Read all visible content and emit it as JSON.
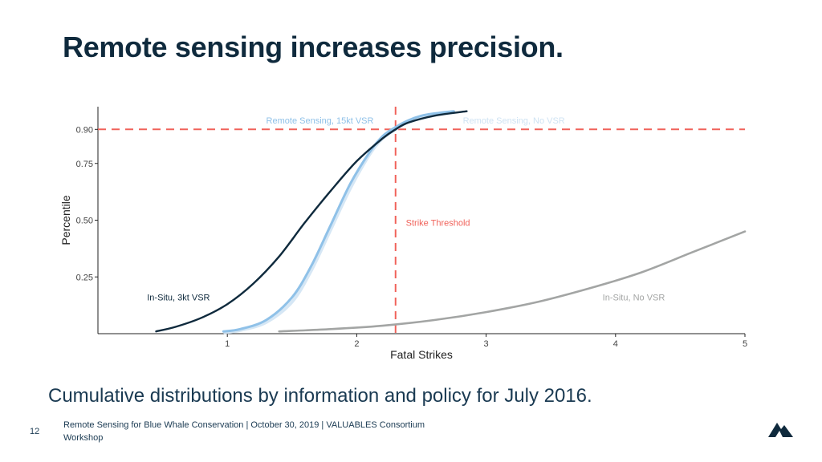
{
  "slide": {
    "title": "Remote sensing increases precision.",
    "caption": "Cumulative distributions by information and policy for July 2016.",
    "page_number": "12",
    "footer": "Remote Sensing for Blue Whale Conservation | October 30, 2019 | VALUABLES Consortium Workshop",
    "logo_icon": "mountain-logo-icon"
  },
  "colors": {
    "title": "#0f2a3d",
    "threshold": "#f0625a",
    "in_situ_3kt": "#0f2a3d",
    "remote_15kt": "#8fc1e8",
    "remote_no_vsr": "#cfe3f3",
    "in_situ_no_vsr": "#a3a5a4"
  },
  "chart_data": {
    "type": "line",
    "xlabel": "Fatal Strikes",
    "ylabel": "Percentile",
    "xlim": [
      0,
      5
    ],
    "ylim": [
      0,
      1
    ],
    "xticks": [
      1,
      2,
      3,
      4,
      5
    ],
    "yticks": [
      0.25,
      0.5,
      0.75,
      0.9
    ],
    "ytick_labels": [
      "0.25",
      "0.50",
      "0.75",
      "0.90"
    ],
    "grid": false,
    "legend": "none",
    "series": [
      {
        "name": "In-Situ, 3kt VSR",
        "color": "#0f2a3d",
        "x": [
          0.45,
          0.6,
          0.8,
          1.0,
          1.2,
          1.4,
          1.6,
          1.8,
          2.0,
          2.2,
          2.3,
          2.4,
          2.6,
          2.85
        ],
        "y": [
          0.01,
          0.03,
          0.07,
          0.13,
          0.22,
          0.34,
          0.49,
          0.63,
          0.76,
          0.86,
          0.9,
          0.93,
          0.96,
          0.98
        ]
      },
      {
        "name": "Remote Sensing, 15kt VSR",
        "color": "#8fc1e8",
        "x": [
          0.97,
          1.1,
          1.3,
          1.5,
          1.65,
          1.8,
          1.95,
          2.1,
          2.2,
          2.3,
          2.4,
          2.5,
          2.6,
          2.75
        ],
        "y": [
          0.01,
          0.02,
          0.06,
          0.16,
          0.3,
          0.48,
          0.66,
          0.8,
          0.87,
          0.91,
          0.94,
          0.96,
          0.97,
          0.98
        ]
      },
      {
        "name": "Remote Sensing, No VSR",
        "color": "#cfe3f3",
        "x": [
          0.98,
          1.1,
          1.3,
          1.5,
          1.65,
          1.8,
          1.95,
          2.1,
          2.2,
          2.3,
          2.4,
          2.5,
          2.6,
          2.75
        ],
        "y": [
          0.005,
          0.015,
          0.05,
          0.14,
          0.28,
          0.46,
          0.64,
          0.79,
          0.86,
          0.9,
          0.935,
          0.955,
          0.965,
          0.975
        ]
      },
      {
        "name": "In-Situ, No VSR",
        "color": "#a3a5a4",
        "x": [
          1.4,
          1.8,
          2.2,
          2.6,
          3.0,
          3.4,
          3.8,
          4.2,
          4.6,
          5.0
        ],
        "y": [
          0.01,
          0.02,
          0.035,
          0.06,
          0.095,
          0.14,
          0.2,
          0.27,
          0.36,
          0.45
        ]
      }
    ],
    "reference_lines": [
      {
        "axis": "x",
        "value": 2.3,
        "label": "Strike Threshold",
        "style": "dashed"
      },
      {
        "axis": "y",
        "value": 0.9,
        "label": "",
        "style": "dashed"
      }
    ],
    "annotations": [
      {
        "text": "Remote Sensing, 15kt VSR",
        "x": 1.3,
        "y": 0.94
      },
      {
        "text": "Remote Sensing, No VSR",
        "x": 2.82,
        "y": 0.94
      },
      {
        "text": "Strike Threshold",
        "x": 2.38,
        "y": 0.49
      },
      {
        "text": "In-Situ, 3kt VSR",
        "x": 0.38,
        "y": 0.16
      },
      {
        "text": "In-Situ, No VSR",
        "x": 3.9,
        "y": 0.16
      }
    ]
  }
}
